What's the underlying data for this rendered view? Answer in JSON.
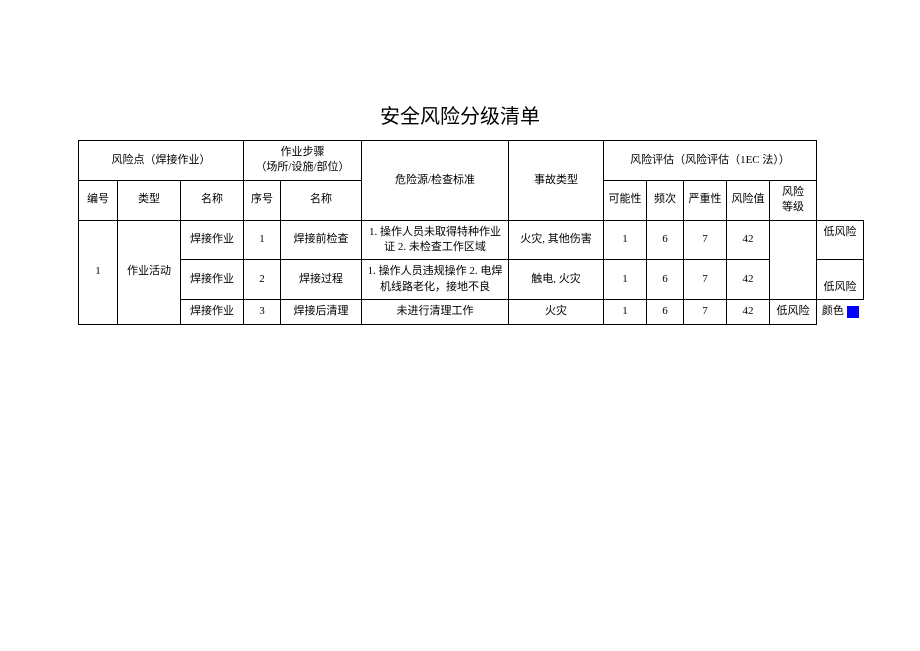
{
  "title": "安全风险分级清单",
  "headers": {
    "risk_point": "风险点（焊接作业）",
    "work_step": "作业步骤\n（场所/设施/部位）",
    "hazard": "危险源/检查标准",
    "accident": "事故类型",
    "risk_eval": "风险评估（风险评估（1EC 法））",
    "number": "编号",
    "type": "类型",
    "name": "名称",
    "step_no": "序号",
    "step_name": "名称",
    "possibility": "可能性",
    "frequency": "频次",
    "severity": "严重性",
    "risk_value": "风险值",
    "risk_level": "风险\n等级"
  },
  "group": {
    "number": "1",
    "type": "作业活动"
  },
  "rows": [
    {
      "name": "焊接作业",
      "step_no": "1",
      "step_name": "焊接前检查",
      "hazard": "1. 操作人员未取得特种作业\n证 2. 未检查工作区域",
      "accident": "火灾, 其他伤害",
      "p": "1",
      "f": "6",
      "s": "7",
      "v": "42",
      "level": "低风险"
    },
    {
      "name": "焊接作业",
      "step_no": "2",
      "step_name": "焊接过程",
      "hazard": "1. 操作人员违规操作 2. 电焊\n机线路老化，接地不良",
      "accident": "触电, 火灾",
      "p": "1",
      "f": "6",
      "s": "7",
      "v": "42",
      "level": "低风险"
    },
    {
      "name": "焊接作业",
      "step_no": "3",
      "step_name": "焊接后清理",
      "hazard": "未进行清理工作",
      "accident": "火灾",
      "p": "1",
      "f": "6",
      "s": "7",
      "v": "42",
      "level": "低风险"
    }
  ],
  "color_label": "颜色",
  "swatch_color": "#0000ff"
}
